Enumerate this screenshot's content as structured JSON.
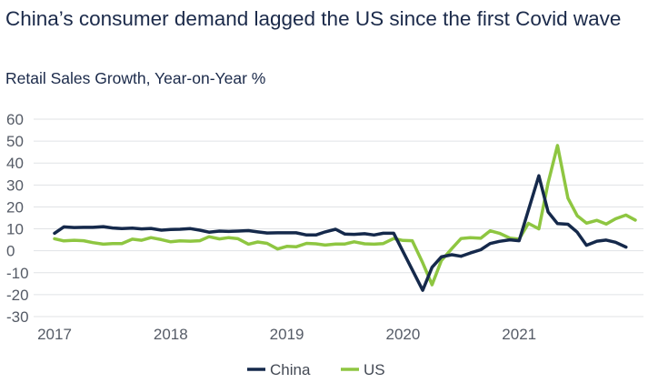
{
  "chart_data": {
    "type": "line",
    "title": "China’s consumer demand lagged the US since the first Covid wave",
    "subtitle": "Retail Sales Growth, Year-on-Year %",
    "xlabel": "",
    "ylabel": "",
    "ylim": [
      -30,
      60
    ],
    "y_ticks": [
      "60",
      "50",
      "40",
      "30",
      "20",
      "10",
      "0",
      "-10",
      "-20",
      "-30"
    ],
    "x_ticks": [
      "2017",
      "2018",
      "2019",
      "2020",
      "2021"
    ],
    "grid": "horizontal",
    "legend": "bottom-center",
    "series": [
      {
        "name": "China",
        "color": "#15294b",
        "points": [
          [
            2017.0,
            8
          ],
          [
            2017.08,
            10.9
          ],
          [
            2017.17,
            10.6
          ],
          [
            2017.25,
            10.7
          ],
          [
            2017.33,
            10.7
          ],
          [
            2017.42,
            11.0
          ],
          [
            2017.5,
            10.4
          ],
          [
            2017.58,
            10.1
          ],
          [
            2017.67,
            10.3
          ],
          [
            2017.75,
            10.0
          ],
          [
            2017.83,
            10.2
          ],
          [
            2017.92,
            9.4
          ],
          [
            2018.0,
            9.7
          ],
          [
            2018.08,
            9.8
          ],
          [
            2018.17,
            10.1
          ],
          [
            2018.25,
            9.4
          ],
          [
            2018.33,
            8.5
          ],
          [
            2018.42,
            9.0
          ],
          [
            2018.5,
            8.8
          ],
          [
            2018.58,
            9.0
          ],
          [
            2018.67,
            9.2
          ],
          [
            2018.75,
            8.6
          ],
          [
            2018.83,
            8.1
          ],
          [
            2018.92,
            8.2
          ],
          [
            2019.0,
            8.2
          ],
          [
            2019.08,
            8.2
          ],
          [
            2019.17,
            7.2
          ],
          [
            2019.25,
            7.2
          ],
          [
            2019.33,
            8.6
          ],
          [
            2019.42,
            9.8
          ],
          [
            2019.5,
            7.6
          ],
          [
            2019.58,
            7.5
          ],
          [
            2019.67,
            7.8
          ],
          [
            2019.75,
            7.2
          ],
          [
            2019.83,
            8.0
          ],
          [
            2019.92,
            8.0
          ],
          [
            2020.17,
            -18.0
          ],
          [
            2020.25,
            -7.5
          ],
          [
            2020.33,
            -2.8
          ],
          [
            2020.42,
            -1.8
          ],
          [
            2020.5,
            -2.5
          ],
          [
            2020.58,
            -1.0
          ],
          [
            2020.67,
            0.5
          ],
          [
            2020.75,
            3.3
          ],
          [
            2020.83,
            4.3
          ],
          [
            2020.92,
            5.0
          ],
          [
            2021.0,
            4.6
          ],
          [
            2021.17,
            34.2
          ],
          [
            2021.25,
            17.7
          ],
          [
            2021.33,
            12.4
          ],
          [
            2021.42,
            12.1
          ],
          [
            2021.5,
            8.5
          ],
          [
            2021.58,
            2.5
          ],
          [
            2021.67,
            4.4
          ],
          [
            2021.75,
            4.9
          ],
          [
            2021.83,
            3.9
          ],
          [
            2021.92,
            1.7
          ]
        ]
      },
      {
        "name": "US",
        "color": "#8ec641",
        "points": [
          [
            2017.0,
            5.5
          ],
          [
            2017.08,
            4.5
          ],
          [
            2017.17,
            4.8
          ],
          [
            2017.25,
            4.6
          ],
          [
            2017.33,
            3.7
          ],
          [
            2017.42,
            3.0
          ],
          [
            2017.5,
            3.3
          ],
          [
            2017.58,
            3.3
          ],
          [
            2017.67,
            5.3
          ],
          [
            2017.75,
            4.8
          ],
          [
            2017.83,
            6.0
          ],
          [
            2017.92,
            5.1
          ],
          [
            2018.0,
            4.1
          ],
          [
            2018.08,
            4.5
          ],
          [
            2018.17,
            4.4
          ],
          [
            2018.25,
            4.6
          ],
          [
            2018.33,
            6.4
          ],
          [
            2018.42,
            5.4
          ],
          [
            2018.5,
            6.0
          ],
          [
            2018.58,
            5.5
          ],
          [
            2018.67,
            3.0
          ],
          [
            2018.75,
            4.0
          ],
          [
            2018.83,
            3.4
          ],
          [
            2018.92,
            0.8
          ],
          [
            2019.0,
            2.0
          ],
          [
            2019.08,
            1.8
          ],
          [
            2019.17,
            3.4
          ],
          [
            2019.25,
            3.2
          ],
          [
            2019.33,
            2.6
          ],
          [
            2019.42,
            3.1
          ],
          [
            2019.5,
            3.1
          ],
          [
            2019.58,
            4.1
          ],
          [
            2019.67,
            3.2
          ],
          [
            2019.75,
            3.0
          ],
          [
            2019.83,
            3.3
          ],
          [
            2019.92,
            5.6
          ],
          [
            2020.0,
            4.7
          ],
          [
            2020.08,
            4.6
          ],
          [
            2020.17,
            -5.5
          ],
          [
            2020.25,
            -15.5
          ],
          [
            2020.33,
            -4.5
          ],
          [
            2020.42,
            1.0
          ],
          [
            2020.5,
            5.6
          ],
          [
            2020.58,
            6.0
          ],
          [
            2020.67,
            5.7
          ],
          [
            2020.75,
            9.1
          ],
          [
            2020.83,
            8.0
          ],
          [
            2020.92,
            5.8
          ],
          [
            2021.0,
            5.3
          ],
          [
            2021.08,
            12.5
          ],
          [
            2021.17,
            10.0
          ],
          [
            2021.25,
            31.0
          ],
          [
            2021.33,
            48.0
          ],
          [
            2021.42,
            24.0
          ],
          [
            2021.5,
            16.0
          ],
          [
            2021.58,
            12.6
          ],
          [
            2021.67,
            13.9
          ],
          [
            2021.75,
            12.2
          ],
          [
            2021.83,
            14.6
          ],
          [
            2021.92,
            16.3
          ],
          [
            2022.0,
            14.0
          ]
        ]
      }
    ]
  }
}
